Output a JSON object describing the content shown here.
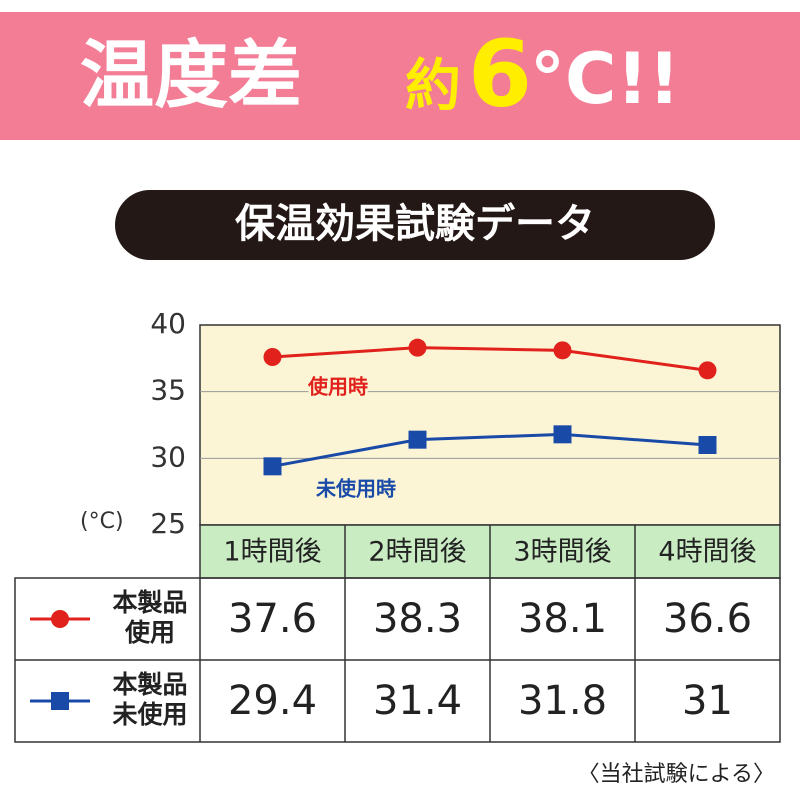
{
  "header": {
    "main": "温度差",
    "approx": "約",
    "number": "6",
    "unit": "°C!!"
  },
  "subtitle": "保温効果試験データ",
  "chart_data": {
    "type": "line",
    "categories": [
      "1時間後",
      "2時間後",
      "3時間後",
      "4時間後"
    ],
    "y_unit": "(°C)",
    "ylim": [
      25,
      40
    ],
    "yticks": [
      25,
      30,
      35,
      40
    ],
    "grid": true,
    "series": [
      {
        "name": "使用時",
        "color": "#e0211c",
        "marker": "circle",
        "values": [
          37.6,
          38.3,
          38.1,
          36.6
        ]
      },
      {
        "name": "未使用時",
        "color": "#1a4aa8",
        "marker": "square",
        "values": [
          29.4,
          31.4,
          31.8,
          31.0
        ]
      }
    ]
  },
  "table": {
    "row_labels": [
      [
        "本製品",
        "使用"
      ],
      [
        "本製品",
        "未使用"
      ]
    ]
  },
  "footnote": "〈当社試験による〉"
}
